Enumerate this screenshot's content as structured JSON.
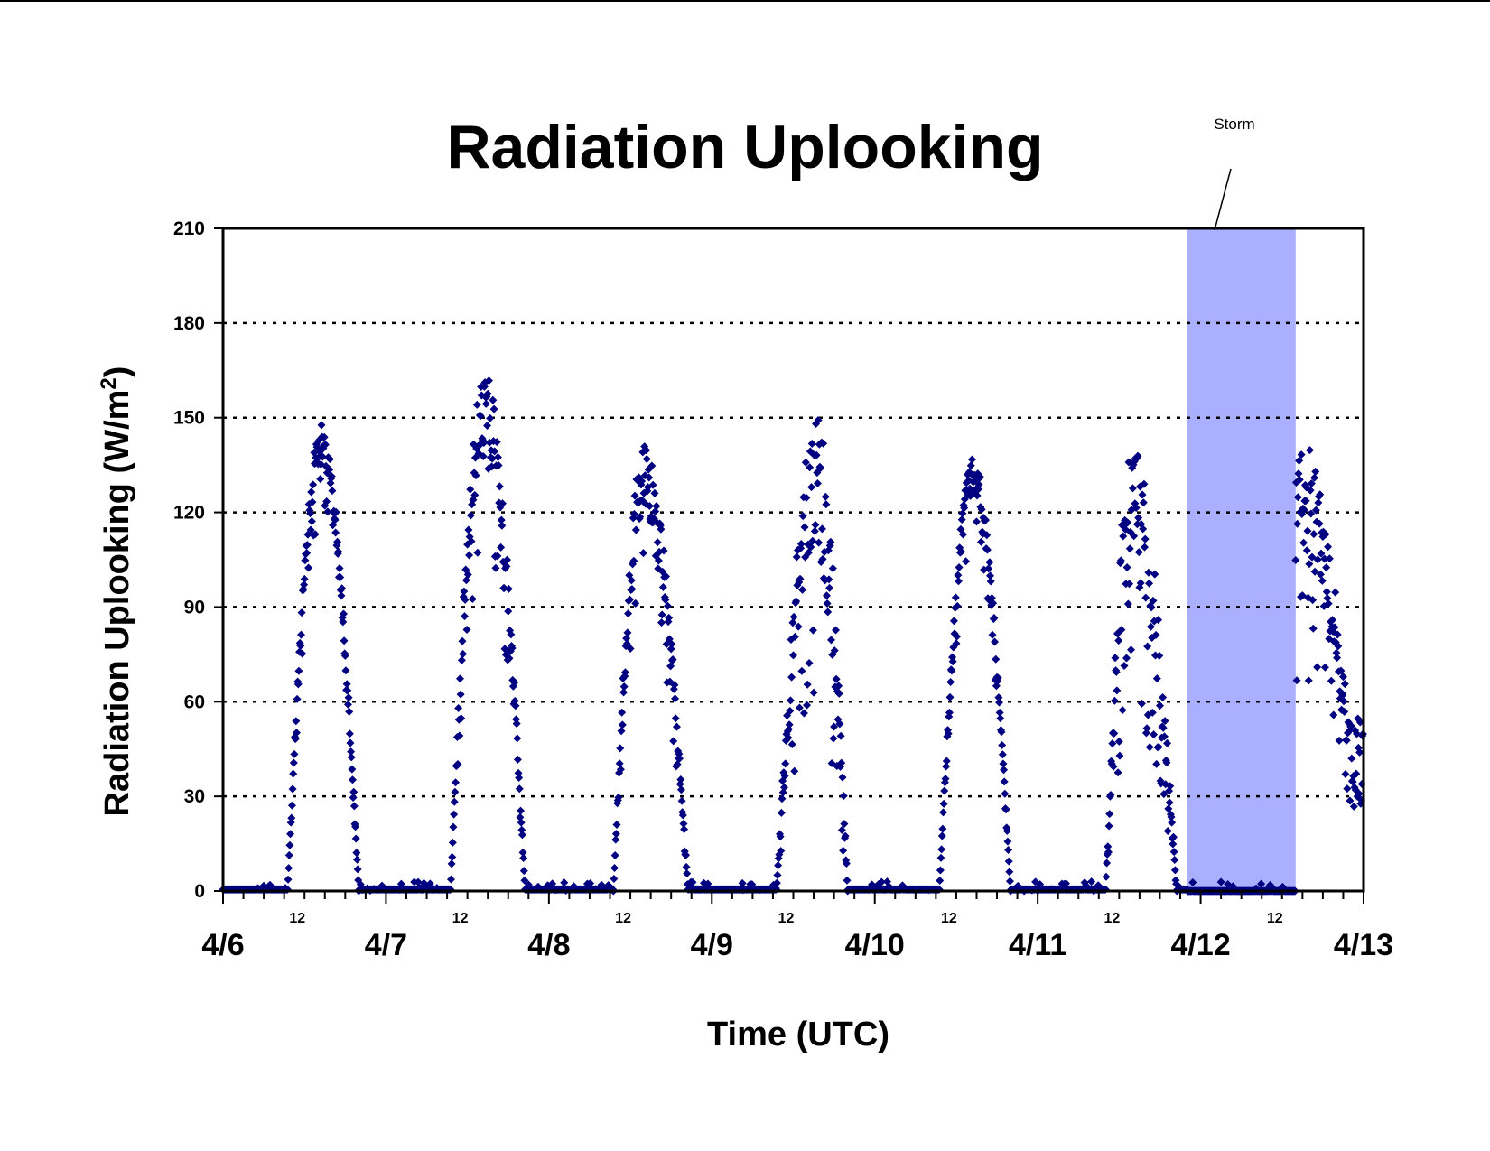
{
  "chart_data": {
    "type": "scatter",
    "title": "Radiation Uplooking",
    "xlabel": "Time (UTC)",
    "ylabel": {
      "text": "Radiation Uplooking (W/m",
      "sup": "2",
      "close": ")"
    },
    "x_unit": "days (date axis, 4/6 00:00 to 4/13 00:00)",
    "xlim": [
      "4/6 00:00",
      "4/13 00:00"
    ],
    "ylim": [
      0,
      210
    ],
    "y_ticks": [
      "0",
      "30",
      "60",
      "90",
      "120",
      "150",
      "180",
      "210"
    ],
    "x_major_labels": [
      "4/6",
      "4/7",
      "4/8",
      "4/9",
      "4/10",
      "4/11",
      "4/12",
      "4/13"
    ],
    "x_minor_labels": [
      "12",
      "12",
      "12",
      "12",
      "12",
      "12",
      "12"
    ],
    "grid": "horizontal dotted",
    "marker_color": "#000080",
    "annotation": {
      "label": "Storm",
      "x_start": "4/11 22:00",
      "x_end": "4/12 14:00",
      "fill": "#aab0ff"
    },
    "daily_cycles": [
      {
        "day": "4/6",
        "rise": 9.5,
        "peak_time": 14.5,
        "set": 20.0,
        "peak": 148,
        "noise": 14
      },
      {
        "day": "4/7",
        "rise": 9.5,
        "peak_time": 14.5,
        "set": 20.5,
        "peak": 165,
        "noise": 28
      },
      {
        "day": "4/8",
        "rise": 9.5,
        "peak_time": 14.0,
        "set": 20.5,
        "peak": 142,
        "noise": 22
      },
      {
        "day": "4/9",
        "rise": 9.5,
        "peak_time": 15.5,
        "set": 20.0,
        "peak": 150,
        "noise": 45
      },
      {
        "day": "4/10",
        "rise": 9.5,
        "peak_time": 14.5,
        "set": 20.0,
        "peak": 137,
        "noise": 12
      },
      {
        "day": "4/11",
        "rise": 10.0,
        "peak_time": 14.0,
        "set": 20.5,
        "peak": 143,
        "noise": 40
      },
      {
        "day": "4/12",
        "rise": 9.5,
        "peak_time": 15.0,
        "set": 24.0,
        "peak": 143,
        "noise": 35
      }
    ]
  }
}
